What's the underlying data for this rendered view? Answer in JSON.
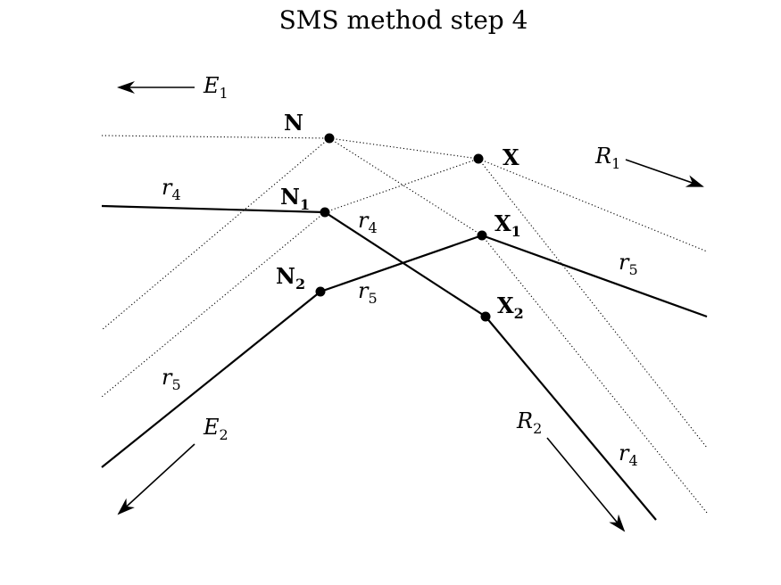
{
  "title": "SMS method step 4",
  "points": {
    "N": {
      "base": "N",
      "sub": ""
    },
    "X": {
      "base": "X",
      "sub": ""
    },
    "N1": {
      "base": "N",
      "sub": "1"
    },
    "N2": {
      "base": "N",
      "sub": "2"
    },
    "X1": {
      "base": "X",
      "sub": "1"
    },
    "X2": {
      "base": "X",
      "sub": "2"
    }
  },
  "wavefronts": {
    "E1": {
      "base": "E",
      "sub": "1"
    },
    "E2": {
      "base": "E",
      "sub": "2"
    },
    "R1": {
      "base": "R",
      "sub": "1"
    },
    "R2": {
      "base": "R",
      "sub": "2"
    }
  },
  "rays": {
    "r4": {
      "base": "r",
      "sub": "4"
    },
    "r5": {
      "base": "r",
      "sub": "5"
    }
  }
}
